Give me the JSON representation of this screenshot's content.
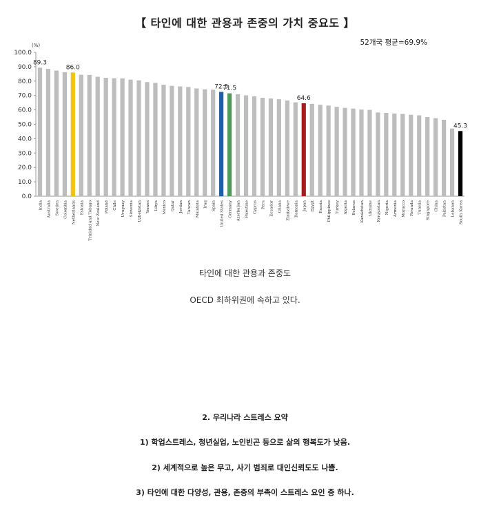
{
  "chart_data": {
    "type": "bar",
    "title": "【 타인에 대한 관용과 존중의 가치 중요도 】",
    "unit_label": "(%)",
    "average_label": "52개국 평균=69.9%",
    "ylim": [
      0,
      100
    ],
    "yticks": [
      "0.0",
      "10.0",
      "20.0",
      "30.0",
      "40.0",
      "50.0",
      "60.0",
      "70.0",
      "80.0",
      "90.0",
      "100.0"
    ],
    "grid": false,
    "categories": [
      "India",
      "Australia",
      "Sweden",
      "Colombia",
      "Netherlands",
      "Estonia",
      "Trinidad and Tobago",
      "New Zealand",
      "Poland",
      "Chile",
      "Uruguay",
      "Slovenia",
      "Uzbekistan",
      "Yemen",
      "Libya",
      "Mexico",
      "Qatar",
      "Jordan",
      "Taiwan",
      "Malaysia",
      "Iraq",
      "Spain",
      "United States",
      "Germany",
      "Azerbaijan",
      "Palestine",
      "Cyprus",
      "Peru",
      "Ecuador",
      "Ghana",
      "Zimbabwe",
      "Romania",
      "Japan",
      "Egypt",
      "Russia",
      "Philippines",
      "Turkey",
      "Algeria",
      "Belarus",
      "Kazakhstan",
      "Ukraine",
      "Kyrgyzstan",
      "Nigeria",
      "Armenia",
      "Morocco",
      "Rwanda",
      "Tunisia",
      "Singapore",
      "China",
      "Pakistan",
      "Lebanon",
      "South Korea"
    ],
    "values": [
      89.3,
      88.5,
      87.3,
      86.2,
      86.0,
      84.4,
      84.3,
      83.0,
      82.3,
      82.0,
      81.9,
      81.0,
      80.5,
      79.3,
      78.8,
      77.5,
      76.7,
      76.3,
      75.9,
      74.9,
      74.3,
      74.0,
      72.5,
      71.5,
      70.9,
      70.1,
      69.4,
      68.4,
      67.9,
      67.4,
      66.5,
      65.2,
      64.6,
      64.2,
      63.6,
      63.0,
      62.1,
      61.4,
      60.9,
      60.2,
      60.0,
      58.2,
      57.9,
      57.5,
      57.2,
      56.6,
      56.2,
      55.0,
      54.2,
      53.1,
      47.0,
      45.3
    ],
    "data_labels": [
      {
        "index": 0,
        "text": "89.3"
      },
      {
        "index": 4,
        "text": "86.0"
      },
      {
        "index": 22,
        "text": "72.5"
      },
      {
        "index": 23,
        "text": "71.5"
      },
      {
        "index": 32,
        "text": "64.6"
      },
      {
        "index": 51,
        "text": "45.3"
      }
    ],
    "colors": {
      "default": "#bdbdbd",
      "highlight": {
        "4": "#f2c414",
        "22": "#1f5fa8",
        "23": "#4f9a5a",
        "32": "#a61c1c",
        "51": "#000000"
      }
    }
  },
  "captions": {
    "line1": "타인에 대한 관용과 존중도",
    "line2": "OECD 최하위권에 속하고 있다."
  },
  "summary": {
    "heading": "2. 우리나라 스트레스 요약",
    "item1": "1) 학업스트레스, 청년실업, 노인빈곤 등으로 삶의 행복도가 낮음.",
    "item2": "2) 세계적으로 높은 무고, 사기 범죄로 대인신뢰도도 나쁨.",
    "item3": "3) 타인에 대한 다양성, 관용, 존중의 부족이 스트레스 요인 중 하나."
  }
}
